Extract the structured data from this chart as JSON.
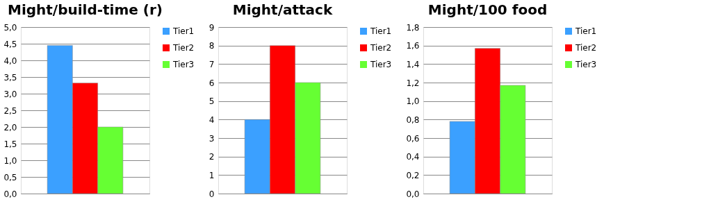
{
  "chart_data": [
    {
      "type": "bar",
      "title": "Might/build-time (r)",
      "categories": [
        null
      ],
      "series": [
        {
          "name": "Tier1",
          "color": "#3ba0ff",
          "values": [
            4.45
          ]
        },
        {
          "name": "Tier2",
          "color": "#ff0000",
          "values": [
            3.32
          ]
        },
        {
          "name": "Tier3",
          "color": "#66ff33",
          "values": [
            2.0
          ]
        }
      ],
      "ylim": [
        0,
        5
      ],
      "yticks": [
        {
          "value": 0,
          "label": "0,0"
        },
        {
          "value": 0.5,
          "label": "0,5"
        },
        {
          "value": 1,
          "label": "1,0"
        },
        {
          "value": 1.5,
          "label": "1,5"
        },
        {
          "value": 2,
          "label": "2,0"
        },
        {
          "value": 2.5,
          "label": "2,5"
        },
        {
          "value": 3,
          "label": "3,0"
        },
        {
          "value": 3.5,
          "label": "3,5"
        },
        {
          "value": 4,
          "label": "4,0"
        },
        {
          "value": 4.5,
          "label": "4,5"
        },
        {
          "value": 5,
          "label": "5,0"
        }
      ],
      "grid": "y",
      "legend": "right"
    },
    {
      "type": "bar",
      "title": "Might/attack",
      "categories": [
        null
      ],
      "series": [
        {
          "name": "Tier1",
          "color": "#3ba0ff",
          "values": [
            4
          ]
        },
        {
          "name": "Tier2",
          "color": "#ff0000",
          "values": [
            8
          ]
        },
        {
          "name": "Tier3",
          "color": "#66ff33",
          "values": [
            6
          ]
        }
      ],
      "ylim": [
        0,
        9
      ],
      "yticks": [
        0,
        1,
        2,
        3,
        4,
        5,
        6,
        7,
        8,
        9
      ],
      "grid": "y",
      "legend": "right"
    },
    {
      "type": "bar",
      "title": "Might/100 food",
      "categories": [
        null
      ],
      "series": [
        {
          "name": "Tier1",
          "color": "#3ba0ff",
          "values": [
            0.78
          ]
        },
        {
          "name": "Tier2",
          "color": "#ff0000",
          "values": [
            1.57
          ]
        },
        {
          "name": "Tier3",
          "color": "#66ff33",
          "values": [
            1.17
          ]
        }
      ],
      "ylim": [
        0,
        1.8
      ],
      "yticks": [
        {
          "value": 0,
          "label": "0,0"
        },
        {
          "value": 0.2,
          "label": "0,2"
        },
        {
          "value": 0.4,
          "label": "0,4"
        },
        {
          "value": 0.6,
          "label": "0,6"
        },
        {
          "value": 0.8,
          "label": "0,8"
        },
        {
          "value": 1,
          "label": "1,0"
        },
        {
          "value": 1.2,
          "label": "1,2"
        },
        {
          "value": 1.4,
          "label": "1,4"
        },
        {
          "value": 1.6,
          "label": "1,6"
        },
        {
          "value": 1.8,
          "label": "1,8"
        }
      ],
      "grid": "y",
      "legend": "right"
    }
  ]
}
